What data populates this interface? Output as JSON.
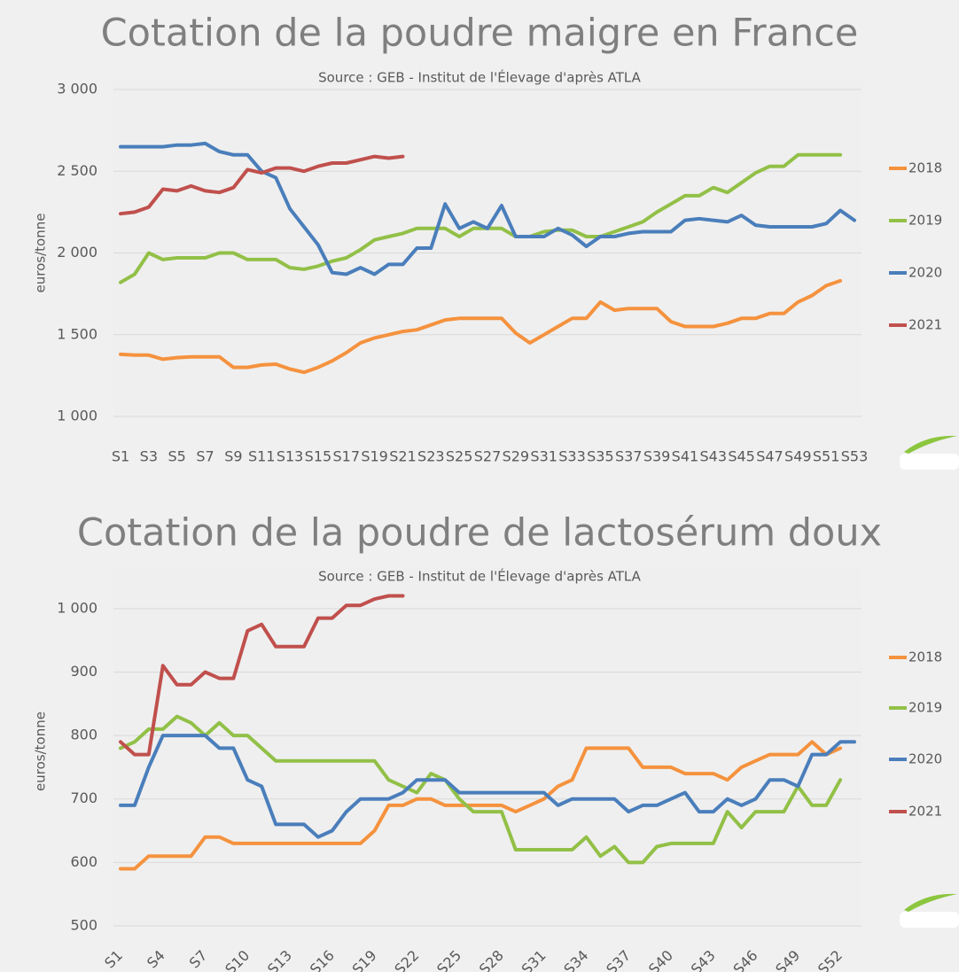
{
  "chart_data": [
    {
      "type": "line",
      "title": "Cotation de la poudre maigre en France",
      "subtitle": "Source : GEB - Institut de l'Élevage d'après ATLA",
      "y_label": "euros/tonne",
      "categories": [
        "S1",
        null,
        "S3",
        null,
        "S5",
        null,
        "S7",
        null,
        "S9",
        null,
        "S11",
        null,
        "S13",
        null,
        "S15",
        null,
        "S17",
        null,
        "S19",
        null,
        "S21",
        null,
        "S23",
        null,
        "S25",
        null,
        "S27",
        null,
        "S29",
        null,
        "S31",
        null,
        "S33",
        null,
        "S35",
        null,
        "S37",
        null,
        "S39",
        null,
        "S41",
        null,
        "S43",
        null,
        "S45",
        null,
        "S47",
        null,
        "S49",
        null,
        "S51",
        null,
        "S53"
      ],
      "series": [
        {
          "name": "2018",
          "color": "#f5923e",
          "values": [
            1380,
            1375,
            1375,
            1350,
            1360,
            1365,
            1365,
            1365,
            1300,
            1300,
            1315,
            1320,
            1290,
            1270,
            1300,
            1340,
            1390,
            1450,
            1480,
            1500,
            1520,
            1530,
            1560,
            1590,
            1600,
            1600,
            1600,
            1600,
            1510,
            1450,
            1500,
            1550,
            1600,
            1600,
            1700,
            1650,
            1660,
            1660,
            1660,
            1580,
            1550,
            1550,
            1550,
            1570,
            1600,
            1600,
            1630,
            1630,
            1700,
            1740,
            1800,
            1830,
            null
          ]
        },
        {
          "name": "2019",
          "color": "#92c047",
          "values": [
            1820,
            1870,
            2000,
            1960,
            1970,
            1970,
            1970,
            2000,
            2000,
            1960,
            1960,
            1960,
            1910,
            1900,
            1920,
            1950,
            1970,
            2020,
            2080,
            2100,
            2120,
            2150,
            2150,
            2150,
            2100,
            2150,
            2150,
            2150,
            2100,
            2100,
            2130,
            2140,
            2140,
            2100,
            2100,
            2130,
            2160,
            2190,
            2250,
            2300,
            2350,
            2350,
            2400,
            2370,
            2430,
            2490,
            2530,
            2530,
            2600,
            2600,
            2600,
            2600,
            null
          ]
        },
        {
          "name": "2020",
          "color": "#4a7ebb",
          "values": [
            2650,
            2650,
            2650,
            2650,
            2660,
            2660,
            2670,
            2620,
            2600,
            2600,
            2500,
            2460,
            2270,
            2160,
            2050,
            1880,
            1870,
            1910,
            1870,
            1930,
            1930,
            2030,
            2030,
            2300,
            2150,
            2190,
            2150,
            2290,
            2100,
            2100,
            2100,
            2150,
            2110,
            2040,
            2100,
            2100,
            2120,
            2130,
            2130,
            2130,
            2200,
            2210,
            2200,
            2190,
            2230,
            2170,
            2160,
            2160,
            2160,
            2160,
            2180,
            2260,
            2200
          ]
        },
        {
          "name": "2021",
          "color": "#c0504d",
          "values": [
            2240,
            2250,
            2280,
            2390,
            2380,
            2410,
            2380,
            2370,
            2400,
            2510,
            2490,
            2520,
            2520,
            2500,
            2530,
            2550,
            2550,
            2570,
            2590,
            2580,
            2590,
            null,
            null,
            null,
            null,
            null,
            null,
            null,
            null,
            null,
            null,
            null,
            null,
            null,
            null,
            null,
            null,
            null,
            null,
            null,
            null,
            null,
            null,
            null,
            null,
            null,
            null,
            null,
            null,
            null,
            null,
            null,
            null
          ]
        }
      ],
      "ylim": [
        1000,
        3000
      ],
      "yticks": [
        {
          "value": 1000,
          "label": "1 000"
        },
        {
          "value": 1500,
          "label": "1 500"
        },
        {
          "value": 2000,
          "label": "2 000"
        },
        {
          "value": 2500,
          "label": "2 500"
        },
        {
          "value": 3000,
          "label": "3 000"
        }
      ],
      "grid": true,
      "legend": "right"
    },
    {
      "type": "line",
      "title": "Cotation de la poudre de lactosérum doux",
      "subtitle": "Source : GEB - Institut de l'Élevage d'après ATLA",
      "y_label": "euros/tonne",
      "categories": [
        "S1",
        null,
        null,
        "S4",
        null,
        null,
        "S7",
        null,
        null,
        "S10",
        null,
        null,
        "S13",
        null,
        null,
        "S16",
        null,
        null,
        "S19",
        null,
        null,
        "S22",
        null,
        null,
        "S25",
        null,
        null,
        "S28",
        null,
        null,
        "S31",
        null,
        null,
        "S34",
        null,
        null,
        "S37",
        null,
        null,
        "S40",
        null,
        null,
        "S43",
        null,
        null,
        "S46",
        null,
        null,
        "S49",
        null,
        null,
        "S52",
        null
      ],
      "series": [
        {
          "name": "2018",
          "color": "#f5923e",
          "values": [
            590,
            590,
            610,
            610,
            610,
            610,
            640,
            640,
            630,
            630,
            630,
            630,
            630,
            630,
            630,
            630,
            630,
            630,
            650,
            690,
            690,
            700,
            700,
            690,
            690,
            690,
            690,
            690,
            680,
            690,
            700,
            720,
            730,
            780,
            780,
            780,
            780,
            750,
            750,
            750,
            740,
            740,
            740,
            730,
            750,
            760,
            770,
            770,
            770,
            790,
            770,
            780,
            null
          ]
        },
        {
          "name": "2019",
          "color": "#92c047",
          "values": [
            780,
            790,
            810,
            810,
            830,
            820,
            800,
            820,
            800,
            800,
            780,
            760,
            760,
            760,
            760,
            760,
            760,
            760,
            760,
            730,
            720,
            710,
            740,
            730,
            700,
            680,
            680,
            680,
            620,
            620,
            620,
            620,
            620,
            640,
            610,
            625,
            600,
            600,
            625,
            630,
            630,
            630,
            630,
            680,
            655,
            680,
            680,
            680,
            720,
            690,
            690,
            730,
            null
          ]
        },
        {
          "name": "2020",
          "color": "#4a7ebb",
          "values": [
            690,
            690,
            750,
            800,
            800,
            800,
            800,
            780,
            780,
            730,
            720,
            660,
            660,
            660,
            640,
            650,
            680,
            700,
            700,
            700,
            710,
            730,
            730,
            730,
            710,
            710,
            710,
            710,
            710,
            710,
            710,
            690,
            700,
            700,
            700,
            700,
            680,
            690,
            690,
            700,
            710,
            680,
            680,
            700,
            690,
            700,
            730,
            730,
            720,
            770,
            770,
            790,
            790
          ]
        },
        {
          "name": "2021",
          "color": "#c0504d",
          "values": [
            790,
            770,
            770,
            910,
            880,
            880,
            900,
            890,
            890,
            965,
            975,
            940,
            940,
            940,
            985,
            985,
            1005,
            1005,
            1015,
            1020,
            1020,
            null,
            null,
            null,
            null,
            null,
            null,
            null,
            null,
            null,
            null,
            null,
            null,
            null,
            null,
            null,
            null,
            null,
            null,
            null,
            null,
            null,
            null,
            null,
            null,
            null,
            null,
            null,
            null,
            null,
            null,
            null,
            null
          ]
        }
      ],
      "ylim": [
        500,
        1050
      ],
      "yticks": [
        500,
        600,
        700,
        800,
        900,
        {
          "value": 1000,
          "label": "1 000"
        }
      ],
      "grid": true,
      "legend": "right"
    }
  ]
}
